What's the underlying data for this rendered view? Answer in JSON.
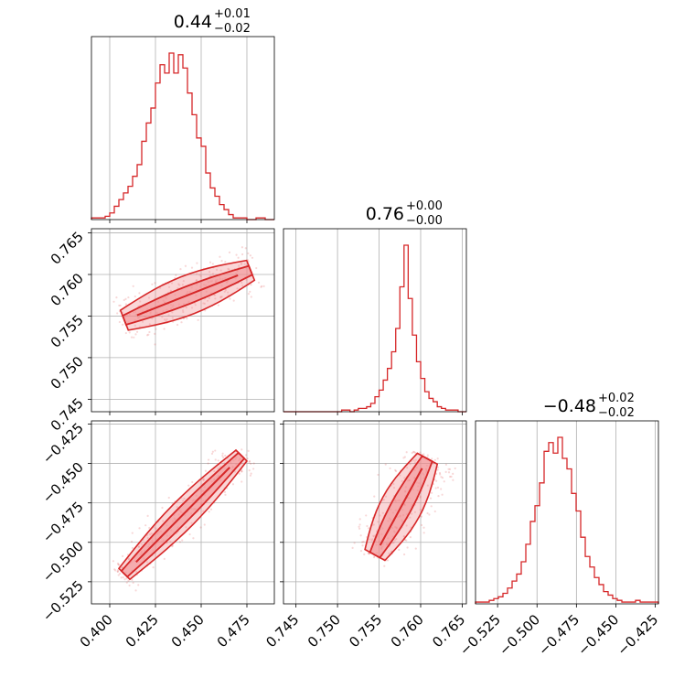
{
  "chart_data": {
    "type": "corner",
    "colors": {
      "series": "#d62728",
      "fill": "#f08a8c",
      "grid": "#b0b0b0"
    },
    "parameters": [
      {
        "title_main": "0.44",
        "title_sup": "+0.01",
        "title_sub": "−0.02",
        "range": [
          0.39,
          0.49
        ],
        "ticks": [
          0.4,
          0.425,
          0.45,
          0.475
        ],
        "tick_labels": [
          "0.400",
          "0.425",
          "0.450",
          "0.475"
        ]
      },
      {
        "title_main": "0.76",
        "title_sup": "+0.00",
        "title_sub": "−0.00",
        "range": [
          0.7435,
          0.7655
        ],
        "ticks": [
          0.745,
          0.75,
          0.755,
          0.76,
          0.765
        ],
        "tick_labels": [
          "0.745",
          "0.750",
          "0.755",
          "0.760",
          "0.765"
        ]
      },
      {
        "title_main": "−0.48",
        "title_sup": "+0.02",
        "title_sub": "−0.02",
        "range": [
          -0.539,
          -0.423
        ],
        "ticks": [
          -0.525,
          -0.5,
          -0.475,
          -0.45,
          -0.425
        ],
        "tick_labels": [
          "−0.525",
          "−0.500",
          "−0.475",
          "−0.450",
          "−0.425"
        ]
      }
    ],
    "histograms": [
      {
        "param": 0,
        "bin_start": 0.39,
        "bin_width": 0.0025,
        "counts": [
          1,
          1,
          1,
          2,
          4,
          8,
          12,
          16,
          20,
          26,
          33,
          47,
          58,
          67,
          82,
          93,
          88,
          100,
          88,
          99,
          91,
          76,
          63,
          49,
          44,
          28,
          19,
          14,
          9,
          6,
          3,
          1,
          1,
          1,
          0,
          0,
          1,
          1,
          0,
          0
        ]
      },
      {
        "param": 1,
        "bin_start": 0.7435,
        "bin_width": 0.0005,
        "counts": [
          0,
          0,
          0,
          0,
          0,
          0,
          0,
          0,
          0,
          0,
          0,
          0,
          0,
          0,
          1,
          1,
          0,
          1,
          2,
          2,
          3,
          5,
          9,
          13,
          19,
          26,
          36,
          50,
          75,
          100,
          68,
          46,
          30,
          20,
          12,
          8,
          6,
          3,
          2,
          1,
          1,
          1,
          0,
          0
        ]
      },
      {
        "param": 2,
        "bin_start": -0.539,
        "bin_width": 0.0029,
        "counts": [
          1,
          1,
          1,
          2,
          3,
          4,
          6,
          9,
          13,
          17,
          24,
          34,
          47,
          56,
          69,
          87,
          92,
          86,
          95,
          83,
          77,
          63,
          53,
          38,
          27,
          21,
          15,
          11,
          7,
          5,
          3,
          2,
          1,
          1,
          1,
          2,
          1,
          1,
          1,
          1
        ]
      }
    ],
    "pairs": [
      {
        "x_param": 0,
        "y_param": 1,
        "trend": {
          "from": [
            0.408,
            0.7545
          ],
          "to": [
            0.477,
            0.7605
          ]
        },
        "inner_contour_width": 0.0012,
        "outer_contour_width": 0.0028
      },
      {
        "x_param": 0,
        "y_param": 2,
        "trend": {
          "from": [
            0.408,
            -0.52
          ],
          "to": [
            0.472,
            -0.445
          ]
        },
        "inner_contour_width": 0.005,
        "outer_contour_width": 0.009
      },
      {
        "x_param": 1,
        "y_param": 2,
        "trend": {
          "from": [
            0.7545,
            -0.508
          ],
          "to": [
            0.7608,
            -0.447
          ]
        },
        "inner_contour_width": 0.008,
        "outer_contour_width": 0.016
      }
    ],
    "grid": true,
    "legend": "none"
  }
}
